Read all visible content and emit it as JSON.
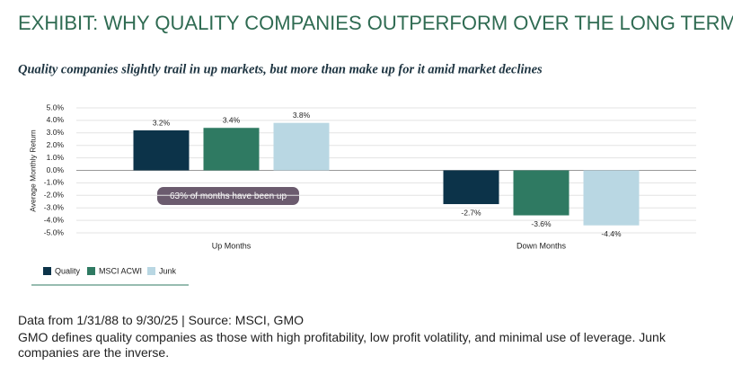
{
  "chart_data": {
    "type": "bar",
    "title": "EXHIBIT: WHY QUALITY COMPANIES OUTPERFORM OVER THE LONG TERM",
    "subtitle": "Quality companies slightly trail in up markets, but more than make up for it amid market declines",
    "y_label": "Average Monthly Return",
    "annotation": "63% of months have been up",
    "categories": [
      "Up Months",
      "Down Months"
    ],
    "series": [
      {
        "name": "Quality",
        "color": "#0c3349",
        "values": [
          3.2,
          -2.7
        ],
        "value_labels": [
          "3.2%",
          "-2.7%"
        ]
      },
      {
        "name": "MSCI ACWI",
        "color": "#2f7a62",
        "values": [
          3.4,
          -3.6
        ],
        "value_labels": [
          "3.4%",
          "-3.6%"
        ]
      },
      {
        "name": "Junk",
        "color": "#b9d7e3",
        "values": [
          3.8,
          -4.4
        ],
        "value_labels": [
          "3.8%",
          "-4.4%"
        ]
      }
    ],
    "ylim": [
      -5,
      5
    ],
    "yticks": [
      {
        "value": 5,
        "label": "5.0%"
      },
      {
        "value": 4,
        "label": "4.0%"
      },
      {
        "value": 3,
        "label": "3.0%"
      },
      {
        "value": 2,
        "label": "2.0%"
      },
      {
        "value": 1,
        "label": "1.0%"
      },
      {
        "value": 0,
        "label": "0.0%"
      },
      {
        "value": -1,
        "label": "-1.0%"
      },
      {
        "value": -2,
        "label": "-2.0%"
      },
      {
        "value": -3,
        "label": "-3.0%"
      },
      {
        "value": -4,
        "label": "-4.0%"
      },
      {
        "value": -5,
        "label": "-5.0%"
      }
    ],
    "grid": true,
    "footnotes": [
      "Data from 1/31/88 to 9/30/25 | Source: MSCI, GMO",
      "GMO defines quality companies as those with high profitability, low profit volatility, and minimal use of leverage. Junk companies are the inverse."
    ]
  }
}
